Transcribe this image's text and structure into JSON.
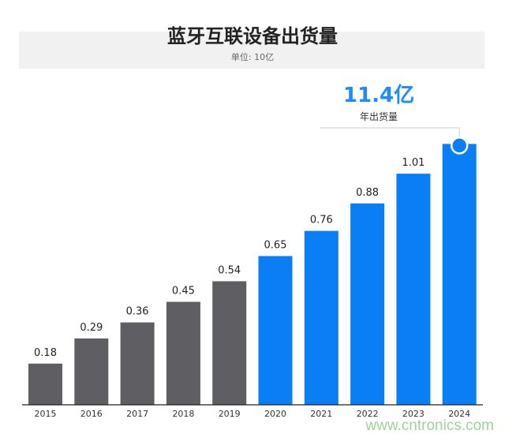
{
  "chart_data": {
    "type": "bar",
    "title": "蓝牙互联设备出货量",
    "subtitle": "单位: 10亿",
    "categories": [
      "2015",
      "2016",
      "2017",
      "2018",
      "2019",
      "2020",
      "2021",
      "2022",
      "2023",
      "2024"
    ],
    "values": [
      0.18,
      0.29,
      0.36,
      0.45,
      0.54,
      0.65,
      0.76,
      0.88,
      1.01,
      1.14
    ],
    "data_labels": [
      "0.18",
      "0.29",
      "0.36",
      "0.45",
      "0.54",
      "0.65",
      "0.76",
      "0.88",
      "1.01",
      ""
    ],
    "colors": {
      "historical": "#5f5f63",
      "forecast": "#0a7ff5"
    },
    "forecast_from": "2020",
    "ylim": [
      0,
      1.2
    ],
    "grid": false,
    "annotation": {
      "value": "11.4亿",
      "label": "年出货量",
      "category": "2024"
    }
  },
  "watermark": "www.cntronics.com"
}
